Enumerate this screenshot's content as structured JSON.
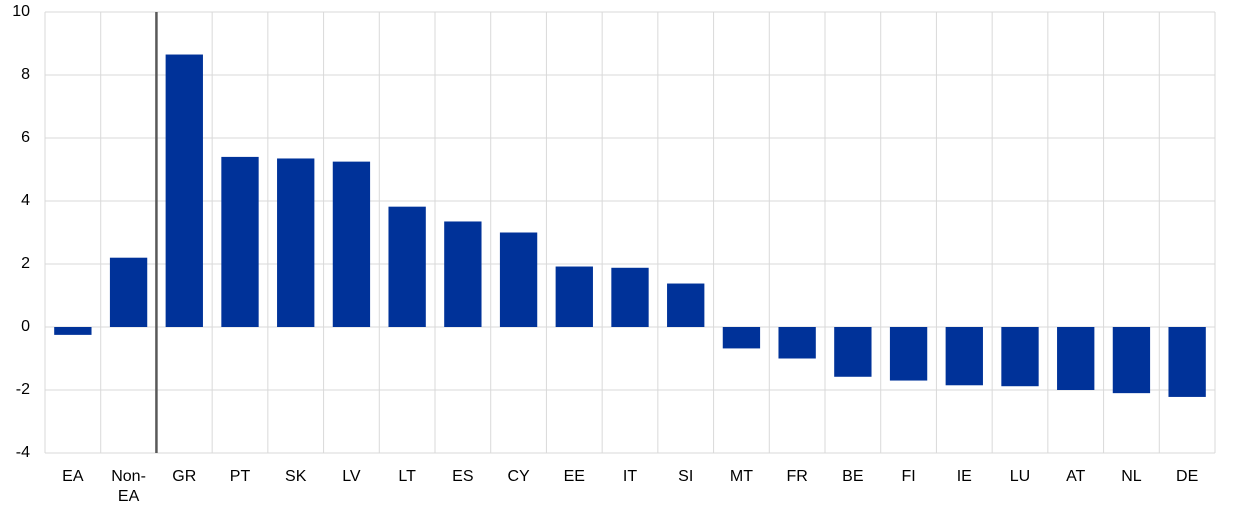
{
  "chart_data": {
    "type": "bar",
    "categories": [
      "EA",
      "Non-EA",
      "GR",
      "PT",
      "SK",
      "LV",
      "LT",
      "ES",
      "CY",
      "EE",
      "IT",
      "SI",
      "MT",
      "FR",
      "BE",
      "FI",
      "IE",
      "LU",
      "AT",
      "NL",
      "DE"
    ],
    "values": [
      -0.25,
      2.2,
      8.65,
      5.4,
      5.35,
      5.25,
      3.82,
      3.35,
      3.0,
      1.92,
      1.88,
      1.38,
      -0.68,
      -1.0,
      -1.58,
      -1.7,
      -1.85,
      -1.88,
      -2.0,
      -2.1,
      -2.22
    ],
    "color": "#003299",
    "ylim": [
      -4,
      10
    ],
    "yticks": [
      -4,
      -2,
      0,
      2,
      4,
      6,
      8,
      10
    ],
    "grid": true
  }
}
